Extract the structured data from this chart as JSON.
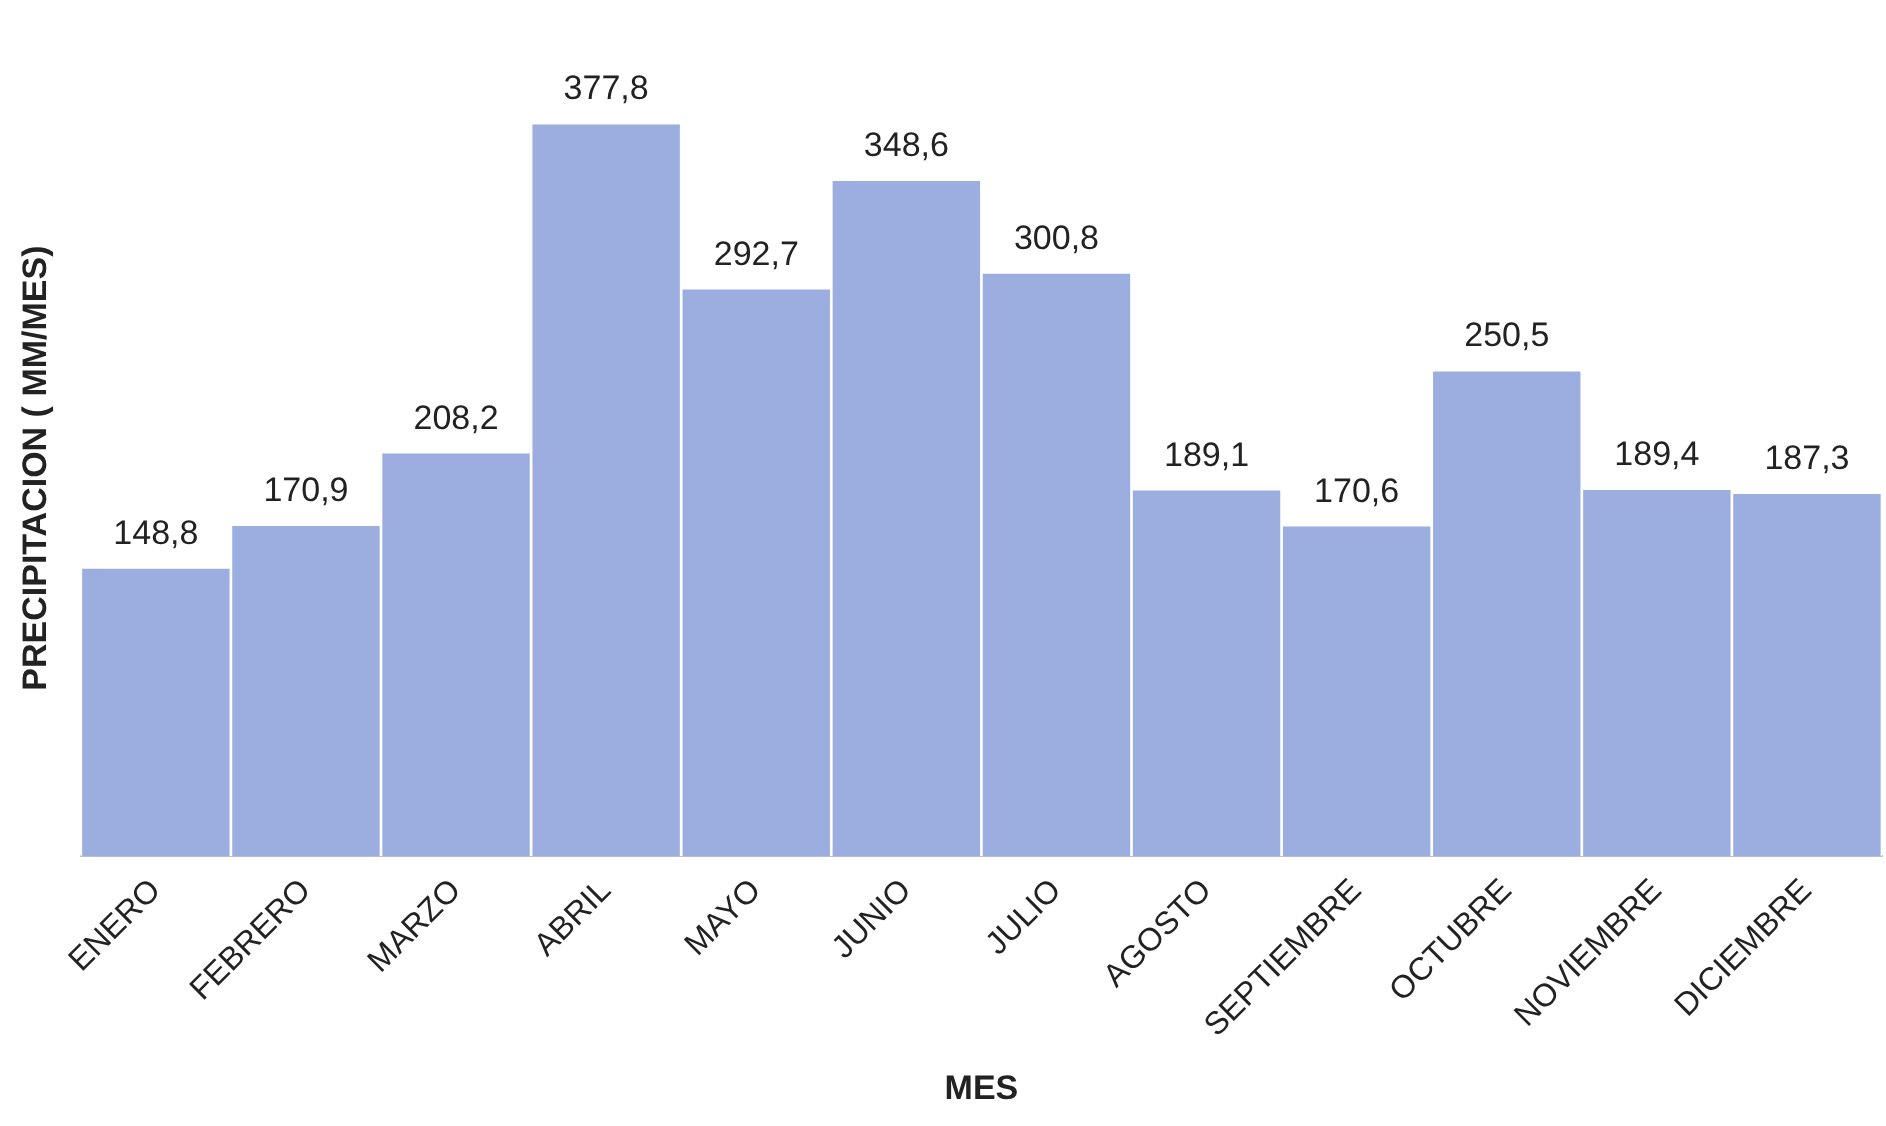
{
  "chart_data": {
    "type": "bar",
    "xlabel": "MES",
    "ylabel": "PRECIPITACION ( MM/MES)",
    "categories": [
      "ENERO",
      "FEBRERO",
      "MARZO",
      "ABRIL",
      "MAYO",
      "JUNIO",
      "JULIO",
      "AGOSTO",
      "SEPTIEMBRE",
      "OCTUBRE",
      "NOVIEMBRE",
      "DICIEMBRE"
    ],
    "values": [
      148.8,
      170.9,
      208.2,
      377.8,
      292.7,
      348.6,
      300.8,
      189.1,
      170.6,
      250.5,
      189.4,
      187.3
    ],
    "value_labels": [
      "148,8",
      "170,9",
      "208,2",
      "377,8",
      "292,7",
      "348,6",
      "300,8",
      "189,1",
      "170,6",
      "250,5",
      "189,4",
      "187,3"
    ],
    "color": "#9caee0",
    "grid": false,
    "legend": false
  }
}
